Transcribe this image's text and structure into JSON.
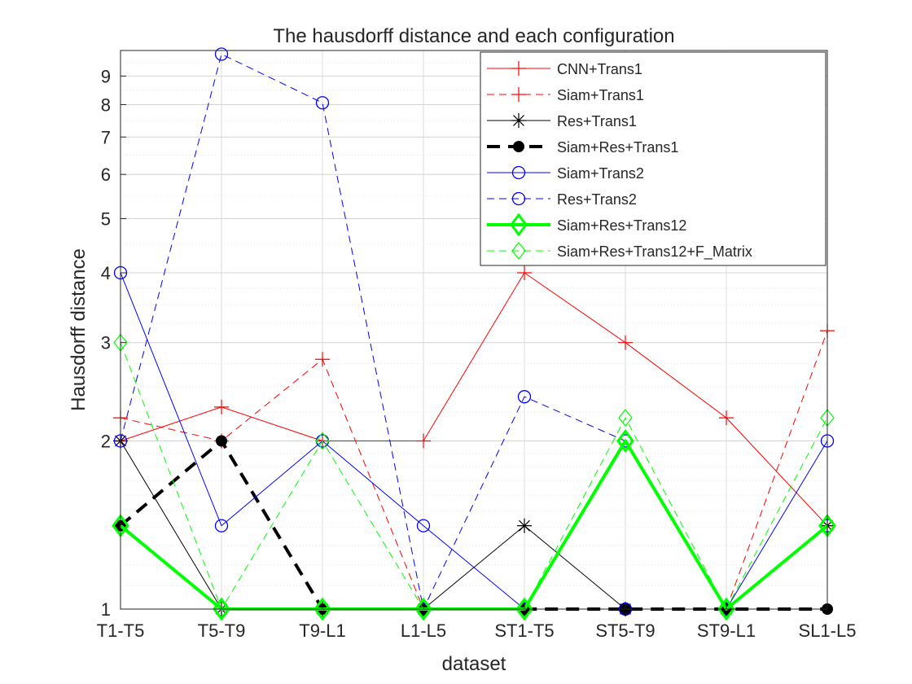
{
  "chart_data": {
    "type": "line",
    "title": "The hausdorff distance and each configuration",
    "xlabel": "dataset",
    "ylabel": "Hausdorff distance",
    "y_scale": "log",
    "ylim": [
      1,
      10
    ],
    "yticks": [
      1,
      2,
      3,
      4,
      5,
      6,
      7,
      8,
      9
    ],
    "grid": true,
    "minor_grid": true,
    "legend_position": "top-right",
    "categories": [
      "T1-T5",
      "T5-T9",
      "T9-L1",
      "L1-L5",
      "ST1-T5",
      "ST5-T9",
      "ST9-L1",
      "SL1-L5"
    ],
    "series": [
      {
        "name": "CNN+Trans1",
        "color": "#ff0000",
        "dash": "solid",
        "marker": "plus",
        "width": 1,
        "values": [
          2.0,
          2.3,
          2.0,
          2.0,
          4.0,
          3.0,
          2.2,
          1.41
        ]
      },
      {
        "name": "Siam+Trans1",
        "color": "#ff0000",
        "dash": "dashed",
        "marker": "plus",
        "width": 1,
        "values": [
          2.2,
          2.0,
          2.8,
          1.0,
          1.0,
          1.0,
          1.0,
          3.15
        ]
      },
      {
        "name": "Res+Trans1",
        "color": "#000000",
        "dash": "solid",
        "marker": "asterisk",
        "width": 1,
        "values": [
          2.0,
          1.0,
          1.0,
          1.0,
          1.41,
          1.0,
          1.0,
          1.41
        ]
      },
      {
        "name": "Siam+Res+Trans1",
        "color": "#000000",
        "dash": "dashed",
        "marker": "dot",
        "width": 4,
        "values": [
          1.41,
          2.0,
          1.0,
          1.0,
          1.0,
          1.0,
          1.0,
          1.0
        ]
      },
      {
        "name": "Siam+Trans2",
        "color": "#0000ff",
        "dash": "solid",
        "marker": "circle",
        "width": 1,
        "values": [
          4.0,
          1.41,
          2.0,
          1.41,
          1.0,
          1.0,
          1.0,
          2.0
        ]
      },
      {
        "name": "Res+Trans2",
        "color": "#0000ff",
        "dash": "dashed",
        "marker": "circle",
        "width": 1,
        "values": [
          2.0,
          9.85,
          8.06,
          1.0,
          2.4,
          2.0,
          1.0,
          1.41
        ]
      },
      {
        "name": "Siam+Res+Trans12",
        "color": "#00ff00",
        "dash": "solid",
        "marker": "diamond",
        "width": 4,
        "values": [
          1.41,
          1.0,
          1.0,
          1.0,
          1.0,
          2.0,
          1.0,
          1.41
        ]
      },
      {
        "name": "Siam+Res+Trans12+F_Matrix",
        "color": "#00ff00",
        "dash": "dashed",
        "marker": "diamond",
        "width": 1,
        "values": [
          3.0,
          1.0,
          2.0,
          1.0,
          1.0,
          2.2,
          1.0,
          2.2
        ]
      }
    ]
  }
}
